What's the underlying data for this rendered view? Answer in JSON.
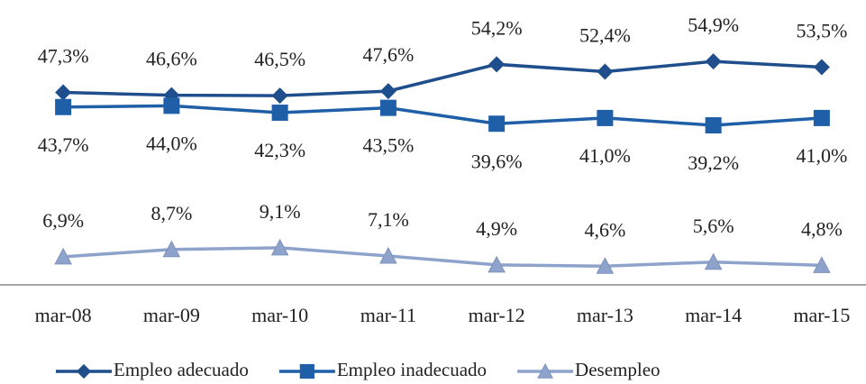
{
  "chart_data": {
    "type": "line",
    "categories": [
      "mar-08",
      "mar-09",
      "mar-10",
      "mar-11",
      "mar-12",
      "mar-13",
      "mar-14",
      "mar-15"
    ],
    "series": [
      {
        "name": "Empleo adecuado",
        "color": "#1f4e8c",
        "marker": "diamond",
        "label_position": "above",
        "values": [
          47.3,
          46.6,
          46.5,
          47.6,
          54.2,
          52.4,
          54.9,
          53.5
        ],
        "value_labels": [
          "47,3%",
          "46,6%",
          "46,5%",
          "47,6%",
          "54,2%",
          "52,4%",
          "54,9%",
          "53,5%"
        ]
      },
      {
        "name": "Empleo inadecuado",
        "color": "#1f5fa8",
        "marker": "square",
        "label_position": "below",
        "values": [
          43.7,
          44.0,
          42.3,
          43.5,
          39.6,
          41.0,
          39.2,
          41.0
        ],
        "value_labels": [
          "43,7%",
          "44,0%",
          "42,3%",
          "43,5%",
          "39,6%",
          "41,0%",
          "39,2%",
          "41,0%"
        ]
      },
      {
        "name": "Desempleo",
        "color": "#8ea3cc",
        "marker": "triangle",
        "label_position": "above",
        "values": [
          6.9,
          8.7,
          9.1,
          7.1,
          4.9,
          4.6,
          5.6,
          4.8
        ],
        "value_labels": [
          "6,9%",
          "8,7%",
          "9,1%",
          "7,1%",
          "4,9%",
          "4,6%",
          "5,6%",
          "4,8%"
        ]
      }
    ],
    "ylim": [
      0,
      70
    ],
    "legend": "bottom"
  }
}
